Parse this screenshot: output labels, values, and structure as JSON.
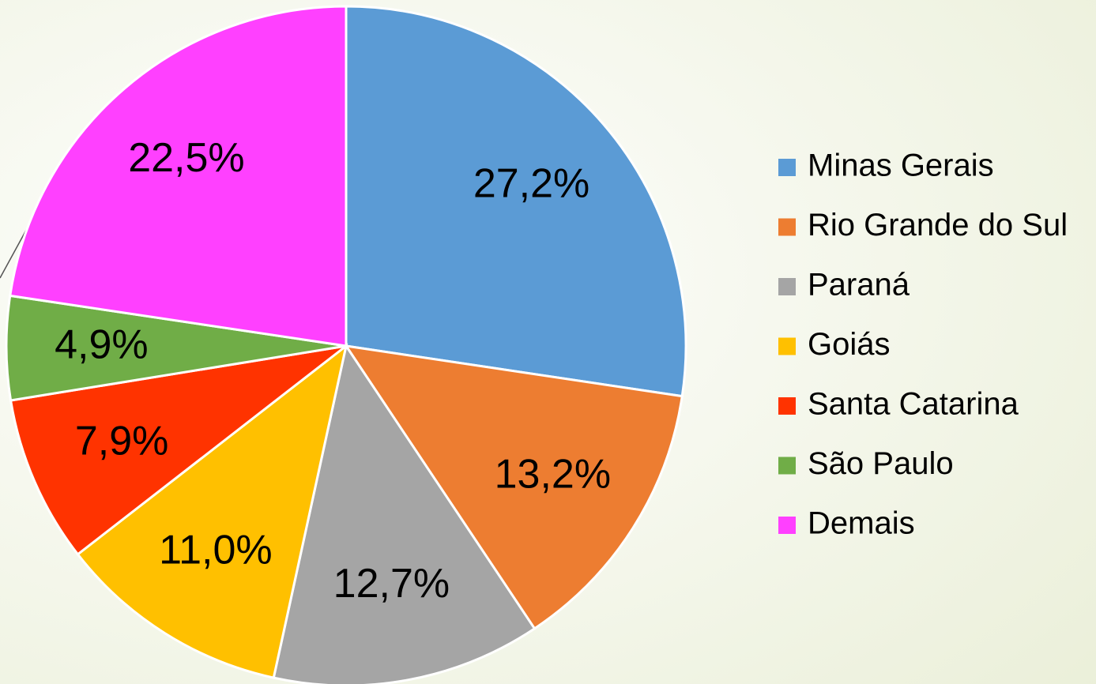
{
  "chart_data": {
    "type": "pie",
    "categories": [
      "Minas Gerais",
      "Rio Grande do Sul",
      "Paraná",
      "Goiás",
      "Santa Catarina",
      "São Paulo",
      "Demais"
    ],
    "values": [
      27.2,
      13.2,
      12.7,
      11.0,
      7.9,
      4.9,
      22.5
    ],
    "value_labels": [
      "27,2%",
      "13,2%",
      "12,7%",
      "11,0%",
      "7,9%",
      "4,9%",
      "22,5%"
    ],
    "colors": [
      "#5b9bd5",
      "#ed7d31",
      "#a5a5a5",
      "#ffc000",
      "#ff3300",
      "#70ad47",
      "#ff40ff"
    ],
    "legend": "right"
  }
}
